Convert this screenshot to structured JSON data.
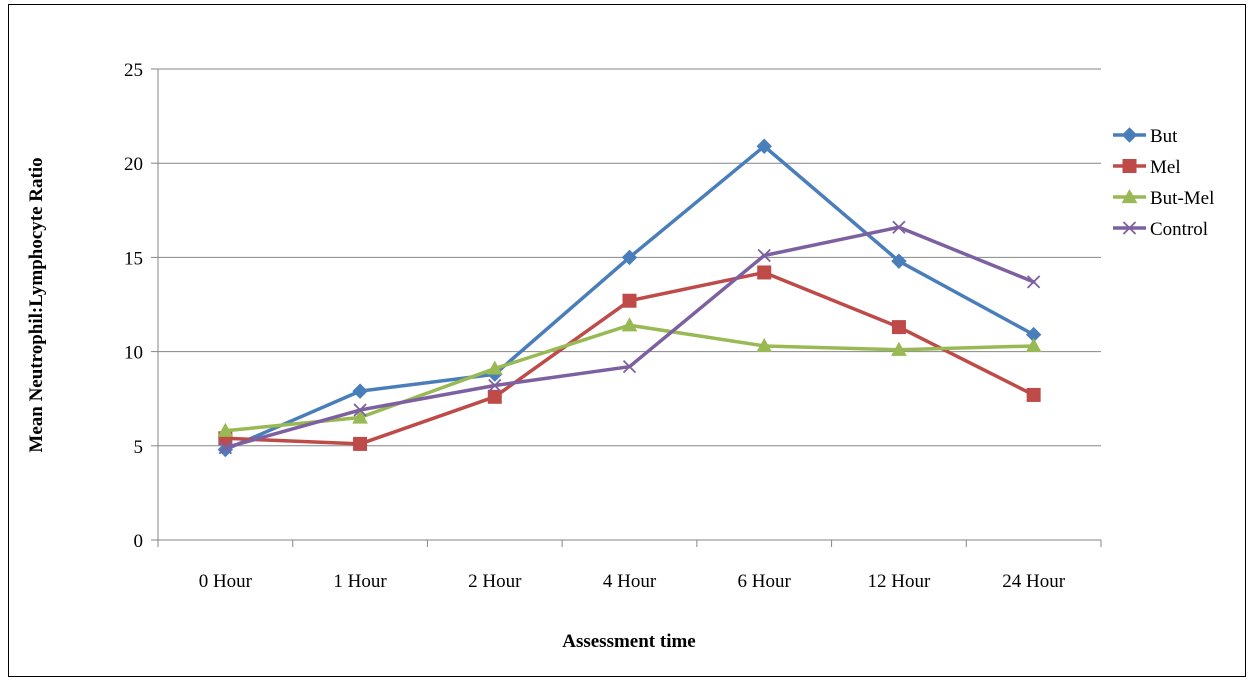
{
  "chart_data": {
    "type": "line",
    "title": "",
    "xlabel": "Assessment time",
    "ylabel": "Mean Neutrophil:Lymphocyte Ratio",
    "categories": [
      "0 Hour",
      "1 Hour",
      "2 Hour",
      "4 Hour",
      "6 Hour",
      "12 Hour",
      "24 Hour"
    ],
    "ylim": [
      0,
      25
    ],
    "yticks": [
      0,
      5,
      10,
      15,
      20,
      25
    ],
    "grid": true,
    "legend_position": "right",
    "series": [
      {
        "name": "But",
        "color": "#4a7ebb",
        "marker": "diamond",
        "values": [
          4.8,
          7.9,
          8.8,
          15.0,
          20.9,
          14.8,
          10.9
        ]
      },
      {
        "name": "Mel",
        "color": "#be4b48",
        "marker": "square",
        "values": [
          5.4,
          5.1,
          7.6,
          12.7,
          14.2,
          11.3,
          7.7
        ]
      },
      {
        "name": "But-Mel",
        "color": "#98b954",
        "marker": "triangle",
        "values": [
          5.8,
          6.5,
          9.1,
          11.4,
          10.3,
          10.1,
          10.3
        ]
      },
      {
        "name": "Control",
        "color": "#7d60a0",
        "marker": "x",
        "values": [
          4.9,
          6.9,
          8.2,
          9.2,
          15.1,
          16.6,
          13.7
        ]
      }
    ]
  }
}
